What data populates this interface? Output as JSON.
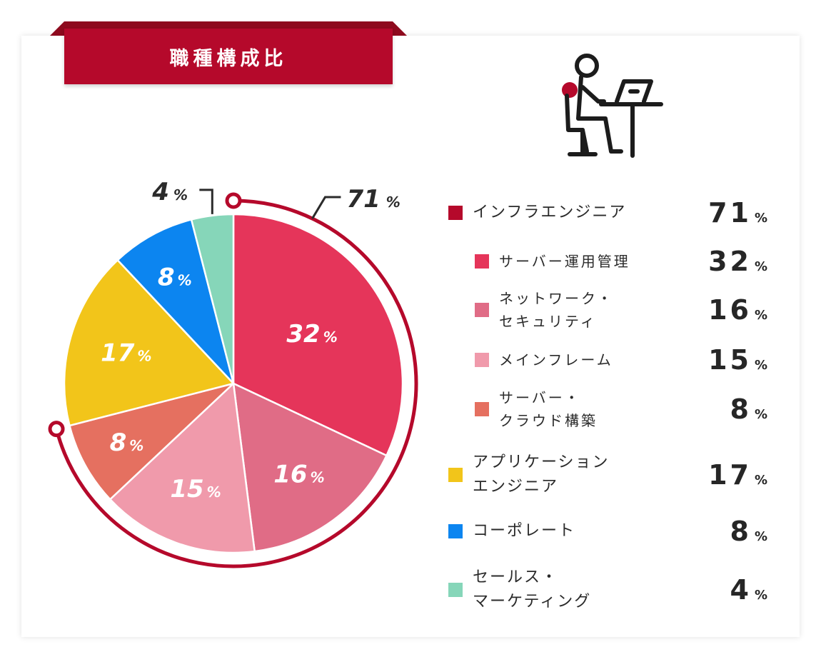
{
  "title": "職種構成比",
  "unit": "%",
  "colors": {
    "brand": "#b5092b",
    "infra_ring": "#b5092b"
  },
  "icon": "person-at-laptop-desk-icon",
  "chart_data": {
    "type": "pie",
    "title": "職種構成比",
    "slices": [
      {
        "name": "サーバー運用管理",
        "value": 32,
        "color": "#e5355a"
      },
      {
        "name": "ネットワーク・セキュリティ",
        "value": 16,
        "color": "#e06c86"
      },
      {
        "name": "メインフレーム",
        "value": 15,
        "color": "#f09aab"
      },
      {
        "name": "サーバー・クラウド構築",
        "value": 8,
        "color": "#e57060"
      },
      {
        "name": "アプリケーションエンジニア",
        "value": 17,
        "color": "#f2c51a"
      },
      {
        "name": "コーポレート",
        "value": 8,
        "color": "#0c85f0"
      },
      {
        "name": "セールス・マーケティング",
        "value": 4,
        "color": "#86d6b9"
      }
    ],
    "group": {
      "name": "インフラエンジニア",
      "value": 71
    },
    "callouts": [
      {
        "value": "71",
        "unit": "%"
      },
      {
        "value": "4",
        "unit": "%"
      }
    ]
  },
  "legend": [
    {
      "label": "インフラエンジニア",
      "value": "71",
      "color": "#b5092b",
      "sub": false
    },
    {
      "label": "サーバー運用管理",
      "value": "32",
      "color": "#e5355a",
      "sub": true
    },
    {
      "label": "ネットワーク・\nセキュリティ",
      "value": "16",
      "color": "#e06c86",
      "sub": true
    },
    {
      "label": "メインフレーム",
      "value": "15",
      "color": "#f09aab",
      "sub": true
    },
    {
      "label": "サーバー・\nクラウド構築",
      "value": "8",
      "color": "#e57060",
      "sub": true
    },
    {
      "label": "アプリケーション\nエンジニア",
      "value": "17",
      "color": "#f2c51a",
      "sub": false
    },
    {
      "label": "コーポレート",
      "value": "8",
      "color": "#0c85f0",
      "sub": false
    },
    {
      "label": "セールス・\nマーケティング",
      "value": "4",
      "color": "#86d6b9",
      "sub": false
    }
  ]
}
